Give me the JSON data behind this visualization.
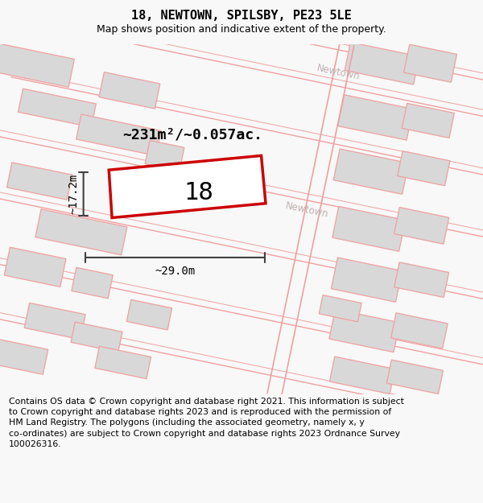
{
  "title_line1": "18, NEWTOWN, SPILSBY, PE23 5LE",
  "title_line2": "Map shows position and indicative extent of the property.",
  "area_text": "~231m²/~0.057ac.",
  "width_label": "~29.0m",
  "height_label": "~17.2m",
  "property_number": "18",
  "street_label": "Newtown",
  "footer_text": "Contains OS data © Crown copyright and database right 2021. This information is subject to Crown copyright and database rights 2023 and is reproduced with the permission of HM Land Registry. The polygons (including the associated geometry, namely x, y co-ordinates) are subject to Crown copyright and database rights 2023 Ordnance Survey 100026316.",
  "bg_color": "#f8f8f8",
  "map_bg_color": "#ffffff",
  "property_fill": "#ffffff",
  "property_edge": "#cc0000",
  "building_fill": "#d8d8d8",
  "building_edge": "#f0a0a0",
  "road_color": "#f0a0a0",
  "street_text_color": "#c0b0b0",
  "dim_line_color": "#404040",
  "title_fontsize": 11,
  "subtitle_fontsize": 9,
  "footer_fontsize": 7.8,
  "area_fontsize": 13,
  "label_fontsize": 10,
  "number_fontsize": 22
}
